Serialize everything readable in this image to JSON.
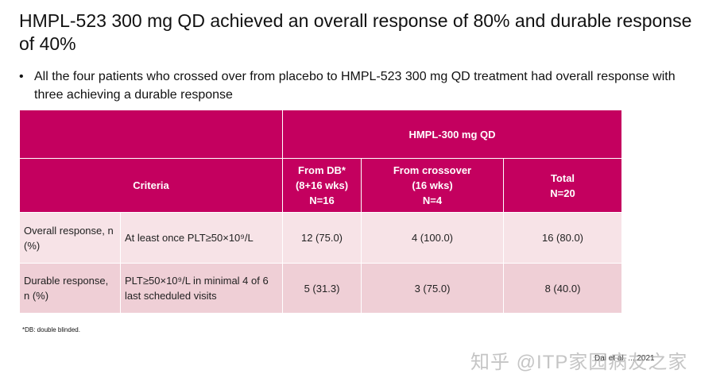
{
  "title": "HMPL-523 300 mg QD achieved an overall response of 80% and durable response of 40%",
  "bullet": "All the four patients who crossed over from placebo to HMPL-523 300 mg QD treatment had overall response with three achieving a durable response",
  "table": {
    "group_header": "HMPL-300 mg QD",
    "criteria_header": "Criteria",
    "columns": [
      {
        "line1": "From DB*",
        "line2": "(8+16 wks)",
        "line3": "N=16"
      },
      {
        "line1": "From crossover",
        "line2": "(16 wks)",
        "line3": "N=4"
      },
      {
        "line1": "Total",
        "line2": "N=20"
      }
    ],
    "rows": [
      {
        "label": "Overall response, n (%)",
        "criterion": "At least once PLT≥50×10⁹/L",
        "values": [
          "12 (75.0)",
          "4 (100.0)",
          "16 (80.0)"
        ]
      },
      {
        "label": "Durable response, n (%)",
        "criterion": "PLT≥50×10⁹/L in minimal 4 of 6 last scheduled visits",
        "values": [
          "5 (31.3)",
          "3 (75.0)",
          "8 (40.0)"
        ]
      }
    ]
  },
  "footnote": "*DB: double blinded.",
  "citation": "Dai et al. ... 2021",
  "watermark": "知乎 @ITP家园病友之家",
  "colors": {
    "header_bg": "#c4005f",
    "row_a_bg": "#f7e3e7",
    "row_b_bg": "#efcfd6"
  }
}
